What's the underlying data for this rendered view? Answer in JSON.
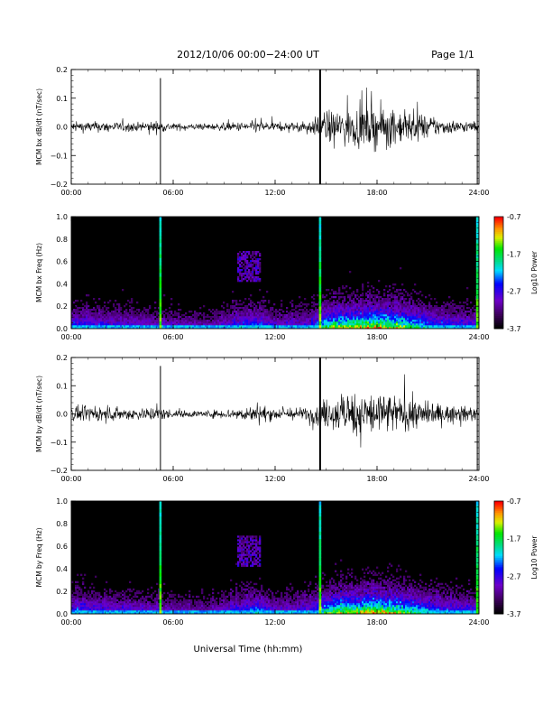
{
  "header": {
    "title": "2012/10/06  00:00−24:00 UT",
    "page": "Page 1/1"
  },
  "x_axis": {
    "ticks": [
      "00:00",
      "06:00",
      "12:00",
      "18:00",
      "24:00"
    ],
    "label": "Universal Time (hh:mm)"
  },
  "colorbar": {
    "label": "Log10 Power",
    "ticks": [
      "-0.7",
      "-1.7",
      "-2.7",
      "-3.7"
    ]
  },
  "chart_data": [
    {
      "type": "line",
      "ylabel": "MCM bx dB/dt (nT/sec)",
      "xlim": [
        0,
        24
      ],
      "ylim": [
        -0.2,
        0.2
      ],
      "y_ticks": [
        "0.2",
        "0.1",
        "0.0",
        "−0.1",
        "−0.2"
      ],
      "x_ticks": [
        "00:00",
        "06:00",
        "12:00",
        "18:00",
        "24:00"
      ],
      "description_of_series": "dB/dt noise near 0.0 nT/sec, amplitude about ±0.02 until ~14:30 UT, increasing to about ±0.08 (peaks ~0.16) from 15:00 to 21:00 UT; spikes at ~05:15, ~14:40 and ~23:55 UT",
      "spikes_hours": [
        5.25,
        14.65,
        23.9
      ],
      "envelope": {
        "hours": [
          0,
          2,
          4,
          5,
          6,
          8,
          10,
          11,
          12,
          13,
          14,
          15,
          16,
          17,
          18,
          19,
          20,
          21,
          22,
          23,
          24
        ],
        "amplitude": [
          0.018,
          0.017,
          0.014,
          0.02,
          0.012,
          0.01,
          0.016,
          0.02,
          0.014,
          0.015,
          0.02,
          0.05,
          0.06,
          0.065,
          0.07,
          0.06,
          0.05,
          0.035,
          0.025,
          0.02,
          0.015
        ]
      }
    },
    {
      "type": "heatmap",
      "ylabel": "MCM bx Freq (Hz)",
      "xlim": [
        0,
        24
      ],
      "ylim": [
        0.0,
        1.0
      ],
      "y_ticks": [
        "1.0",
        "0.8",
        "0.6",
        "0.4",
        "0.2",
        "0.0"
      ],
      "x_ticks": [
        "00:00",
        "06:00",
        "12:00",
        "18:00",
        "24:00"
      ],
      "zlabel": "Log10 Power",
      "zlim": [
        -3.7,
        -0.7
      ],
      "bright_columns_hours": [
        5.25,
        14.65,
        23.9
      ]
    },
    {
      "type": "line",
      "ylabel": "MCM by dB/dt (nT/sec)",
      "xlim": [
        0,
        24
      ],
      "ylim": [
        -0.2,
        0.2
      ],
      "y_ticks": [
        "0.2",
        "0.1",
        "0.0",
        "−0.1",
        "−0.2"
      ],
      "x_ticks": [
        "00:00",
        "06:00",
        "12:00",
        "18:00",
        "24:00"
      ],
      "spikes_hours": [
        5.25,
        14.65,
        23.9
      ],
      "envelope": {
        "hours": [
          0,
          2,
          4,
          5,
          6,
          8,
          10,
          11,
          12,
          13,
          14,
          15,
          16,
          17,
          18,
          19,
          20,
          21,
          22,
          23,
          24
        ],
        "amplitude": [
          0.025,
          0.022,
          0.02,
          0.025,
          0.012,
          0.012,
          0.02,
          0.03,
          0.02,
          0.02,
          0.025,
          0.05,
          0.065,
          0.075,
          0.08,
          0.065,
          0.055,
          0.04,
          0.03,
          0.025,
          0.02
        ]
      }
    },
    {
      "type": "heatmap",
      "ylabel": "MCM by Freq (Hz)",
      "xlim": [
        0,
        24
      ],
      "ylim": [
        0.0,
        1.0
      ],
      "y_ticks": [
        "1.0",
        "0.8",
        "0.6",
        "0.4",
        "0.2",
        "0.0"
      ],
      "x_ticks": [
        "00:00",
        "06:00",
        "12:00",
        "18:00",
        "24:00"
      ],
      "zlabel": "Log10 Power",
      "zlim": [
        -3.7,
        -0.7
      ],
      "bright_columns_hours": [
        5.25,
        14.65,
        23.9
      ]
    }
  ]
}
